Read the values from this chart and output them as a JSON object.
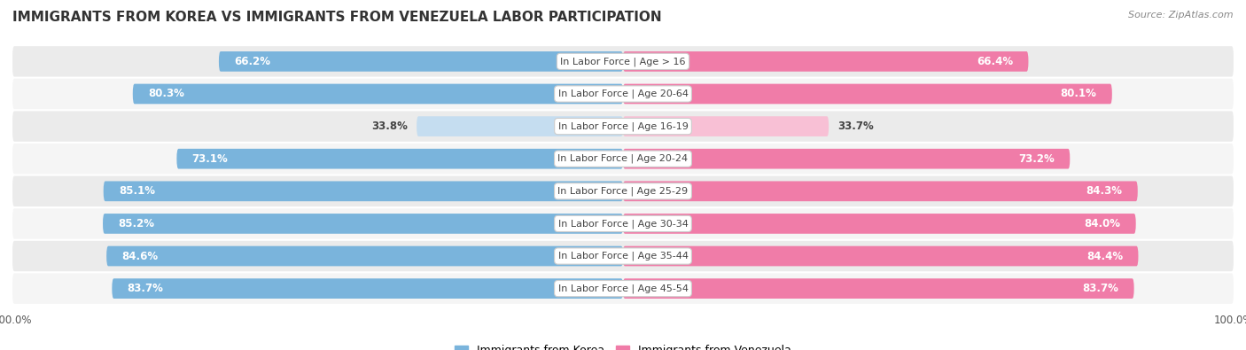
{
  "title": "IMMIGRANTS FROM KOREA VS IMMIGRANTS FROM VENEZUELA LABOR PARTICIPATION",
  "source": "Source: ZipAtlas.com",
  "categories": [
    "In Labor Force | Age > 16",
    "In Labor Force | Age 20-64",
    "In Labor Force | Age 16-19",
    "In Labor Force | Age 20-24",
    "In Labor Force | Age 25-29",
    "In Labor Force | Age 30-34",
    "In Labor Force | Age 35-44",
    "In Labor Force | Age 45-54"
  ],
  "korea_values": [
    66.2,
    80.3,
    33.8,
    73.1,
    85.1,
    85.2,
    84.6,
    83.7
  ],
  "venezuela_values": [
    66.4,
    80.1,
    33.7,
    73.2,
    84.3,
    84.0,
    84.4,
    83.7
  ],
  "korea_color": "#7ab4dc",
  "korea_color_light": "#c5ddf0",
  "venezuela_color": "#f07ca8",
  "venezuela_color_light": "#f8c0d5",
  "row_bg_even": "#ebebeb",
  "row_bg_odd": "#f5f5f5",
  "max_value": 100.0,
  "label_korea": "Immigrants from Korea",
  "label_venezuela": "Immigrants from Venezuela",
  "title_fontsize": 11,
  "source_fontsize": 8,
  "bar_label_fontsize": 8.5,
  "category_fontsize": 8,
  "legend_fontsize": 9
}
